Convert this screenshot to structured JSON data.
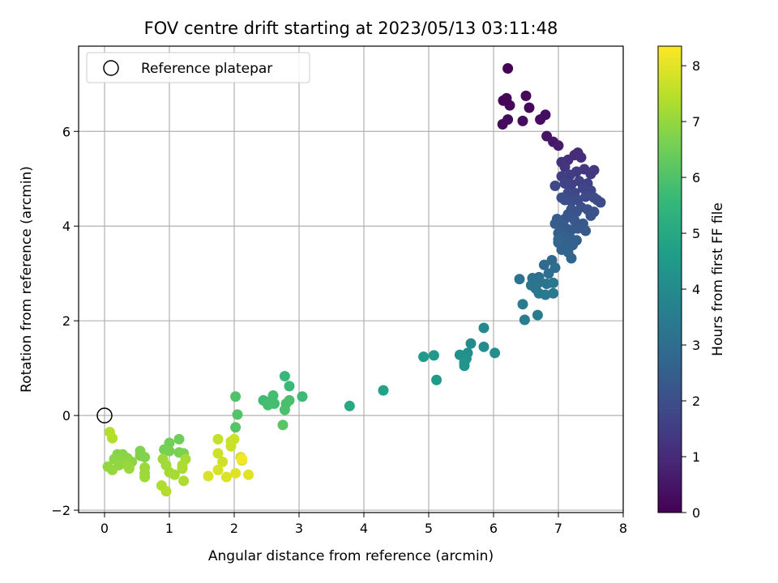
{
  "chart_data": {
    "type": "scatter",
    "title": "FOV centre drift starting at 2023/05/13 03:11:48",
    "xlabel": "Angular distance from reference (arcmin)",
    "ylabel": "Rotation from reference (arcmin)",
    "xlim": [
      -0.4,
      8.0
    ],
    "ylim": [
      -2.05,
      7.8
    ],
    "xticks": [
      0,
      1,
      2,
      3,
      4,
      5,
      6,
      7,
      8
    ],
    "yticks": [
      -2,
      0,
      2,
      4,
      6
    ],
    "grid": true,
    "legend": {
      "placement": "top-left",
      "entries": [
        "Reference platepar"
      ]
    },
    "reference_point": {
      "x": 0.0,
      "y": 0.0,
      "label": "Reference platepar"
    },
    "colorbar": {
      "label": "Hours from first FF file",
      "range": [
        0,
        8.35
      ],
      "ticks": [
        0,
        1,
        2,
        3,
        4,
        5,
        6,
        7,
        8
      ],
      "colormap": "viridis"
    },
    "points": [
      {
        "x": 6.22,
        "y": 7.33,
        "c": 0.05
      },
      {
        "x": 6.15,
        "y": 6.65,
        "c": 0.1
      },
      {
        "x": 6.2,
        "y": 6.7,
        "c": 0.12
      },
      {
        "x": 6.25,
        "y": 6.55,
        "c": 0.15
      },
      {
        "x": 6.5,
        "y": 6.75,
        "c": 0.18
      },
      {
        "x": 6.55,
        "y": 6.5,
        "c": 0.2
      },
      {
        "x": 6.14,
        "y": 6.15,
        "c": 0.22
      },
      {
        "x": 6.22,
        "y": 6.25,
        "c": 0.25
      },
      {
        "x": 6.45,
        "y": 6.22,
        "c": 0.28
      },
      {
        "x": 6.72,
        "y": 6.25,
        "c": 0.3
      },
      {
        "x": 6.8,
        "y": 6.35,
        "c": 0.33
      },
      {
        "x": 6.82,
        "y": 5.9,
        "c": 0.45
      },
      {
        "x": 6.92,
        "y": 5.78,
        "c": 0.55
      },
      {
        "x": 7.0,
        "y": 5.7,
        "c": 0.65
      },
      {
        "x": 7.25,
        "y": 5.5,
        "c": 1.0
      },
      {
        "x": 7.3,
        "y": 5.55,
        "c": 1.05
      },
      {
        "x": 7.35,
        "y": 5.45,
        "c": 1.1
      },
      {
        "x": 7.15,
        "y": 5.4,
        "c": 1.15
      },
      {
        "x": 7.05,
        "y": 5.35,
        "c": 1.2
      },
      {
        "x": 7.1,
        "y": 5.25,
        "c": 1.25
      },
      {
        "x": 7.4,
        "y": 5.2,
        "c": 1.3
      },
      {
        "x": 7.55,
        "y": 5.18,
        "c": 1.35
      },
      {
        "x": 7.5,
        "y": 5.1,
        "c": 1.4
      },
      {
        "x": 7.28,
        "y": 5.15,
        "c": 1.45
      },
      {
        "x": 7.18,
        "y": 5.08,
        "c": 1.5
      },
      {
        "x": 7.05,
        "y": 5.05,
        "c": 1.55
      },
      {
        "x": 7.32,
        "y": 4.95,
        "c": 1.6
      },
      {
        "x": 7.45,
        "y": 4.9,
        "c": 1.62
      },
      {
        "x": 7.2,
        "y": 4.88,
        "c": 1.65
      },
      {
        "x": 7.1,
        "y": 4.9,
        "c": 1.7
      },
      {
        "x": 7.38,
        "y": 4.8,
        "c": 1.72
      },
      {
        "x": 7.5,
        "y": 4.75,
        "c": 1.75
      },
      {
        "x": 7.25,
        "y": 4.7,
        "c": 1.78
      },
      {
        "x": 7.15,
        "y": 4.7,
        "c": 1.8
      },
      {
        "x": 6.95,
        "y": 4.85,
        "c": 1.82
      },
      {
        "x": 7.42,
        "y": 4.62,
        "c": 1.85
      },
      {
        "x": 7.55,
        "y": 4.6,
        "c": 1.88
      },
      {
        "x": 7.6,
        "y": 4.55,
        "c": 1.9
      },
      {
        "x": 7.65,
        "y": 4.5,
        "c": 1.92
      },
      {
        "x": 7.3,
        "y": 4.55,
        "c": 1.95
      },
      {
        "x": 7.2,
        "y": 4.52,
        "c": 1.97
      },
      {
        "x": 7.1,
        "y": 4.55,
        "c": 2.0
      },
      {
        "x": 7.05,
        "y": 4.6,
        "c": 2.02
      },
      {
        "x": 7.35,
        "y": 4.4,
        "c": 2.05
      },
      {
        "x": 7.45,
        "y": 4.35,
        "c": 2.08
      },
      {
        "x": 7.55,
        "y": 4.3,
        "c": 2.1
      },
      {
        "x": 7.5,
        "y": 4.22,
        "c": 2.12
      },
      {
        "x": 7.28,
        "y": 4.3,
        "c": 2.15
      },
      {
        "x": 7.2,
        "y": 4.35,
        "c": 2.18
      },
      {
        "x": 7.15,
        "y": 4.25,
        "c": 2.2
      },
      {
        "x": 7.1,
        "y": 4.15,
        "c": 2.22
      },
      {
        "x": 7.25,
        "y": 4.12,
        "c": 2.25
      },
      {
        "x": 7.38,
        "y": 4.05,
        "c": 2.28
      },
      {
        "x": 7.3,
        "y": 3.95,
        "c": 2.3
      },
      {
        "x": 7.42,
        "y": 3.9,
        "c": 2.32
      },
      {
        "x": 7.2,
        "y": 3.92,
        "c": 2.35
      },
      {
        "x": 7.12,
        "y": 3.95,
        "c": 2.38
      },
      {
        "x": 7.05,
        "y": 4.05,
        "c": 2.4
      },
      {
        "x": 6.98,
        "y": 4.15,
        "c": 2.42
      },
      {
        "x": 6.95,
        "y": 4.05,
        "c": 2.45
      },
      {
        "x": 7.0,
        "y": 3.85,
        "c": 2.48
      },
      {
        "x": 7.08,
        "y": 3.8,
        "c": 2.5
      },
      {
        "x": 7.18,
        "y": 3.75,
        "c": 2.52
      },
      {
        "x": 7.28,
        "y": 3.7,
        "c": 2.55
      },
      {
        "x": 7.22,
        "y": 3.6,
        "c": 2.58
      },
      {
        "x": 7.1,
        "y": 3.6,
        "c": 2.6
      },
      {
        "x": 7.0,
        "y": 3.65,
        "c": 2.62
      },
      {
        "x": 7.05,
        "y": 3.5,
        "c": 2.65
      },
      {
        "x": 7.15,
        "y": 3.45,
        "c": 2.68
      },
      {
        "x": 7.2,
        "y": 3.32,
        "c": 2.7
      },
      {
        "x": 7.0,
        "y": 3.72,
        "c": 2.72
      },
      {
        "x": 6.9,
        "y": 3.28,
        "c": 2.8
      },
      {
        "x": 6.78,
        "y": 3.18,
        "c": 2.9
      },
      {
        "x": 6.95,
        "y": 3.12,
        "c": 2.95
      },
      {
        "x": 6.85,
        "y": 3.0,
        "c": 3.0
      },
      {
        "x": 6.7,
        "y": 2.92,
        "c": 3.05
      },
      {
        "x": 6.6,
        "y": 2.9,
        "c": 3.1
      },
      {
        "x": 6.4,
        "y": 2.88,
        "c": 3.15
      },
      {
        "x": 6.72,
        "y": 2.82,
        "c": 3.2
      },
      {
        "x": 6.82,
        "y": 2.78,
        "c": 3.22
      },
      {
        "x": 6.58,
        "y": 2.75,
        "c": 3.25
      },
      {
        "x": 6.65,
        "y": 2.68,
        "c": 3.3
      },
      {
        "x": 6.92,
        "y": 2.8,
        "c": 3.32
      },
      {
        "x": 6.7,
        "y": 2.58,
        "c": 3.35
      },
      {
        "x": 6.8,
        "y": 2.55,
        "c": 3.38
      },
      {
        "x": 6.92,
        "y": 2.58,
        "c": 3.4
      },
      {
        "x": 6.45,
        "y": 2.35,
        "c": 3.45
      },
      {
        "x": 6.68,
        "y": 2.12,
        "c": 3.5
      },
      {
        "x": 6.48,
        "y": 2.02,
        "c": 3.55
      },
      {
        "x": 5.85,
        "y": 1.85,
        "c": 3.9
      },
      {
        "x": 5.65,
        "y": 1.52,
        "c": 4.0
      },
      {
        "x": 5.85,
        "y": 1.45,
        "c": 4.05
      },
      {
        "x": 6.02,
        "y": 1.32,
        "c": 4.1
      },
      {
        "x": 5.6,
        "y": 1.32,
        "c": 4.15
      },
      {
        "x": 5.48,
        "y": 1.28,
        "c": 4.2
      },
      {
        "x": 5.58,
        "y": 1.2,
        "c": 4.25
      },
      {
        "x": 5.55,
        "y": 1.12,
        "c": 4.3
      },
      {
        "x": 5.55,
        "y": 1.05,
        "c": 4.35
      },
      {
        "x": 5.08,
        "y": 1.27,
        "c": 4.45
      },
      {
        "x": 4.92,
        "y": 1.24,
        "c": 4.5
      },
      {
        "x": 5.12,
        "y": 0.75,
        "c": 4.55
      },
      {
        "x": 4.3,
        "y": 0.53,
        "c": 4.8
      },
      {
        "x": 3.78,
        "y": 0.2,
        "c": 5.0
      },
      {
        "x": 2.78,
        "y": 0.83,
        "c": 5.6
      },
      {
        "x": 2.85,
        "y": 0.62,
        "c": 5.65
      },
      {
        "x": 3.05,
        "y": 0.4,
        "c": 5.7
      },
      {
        "x": 2.45,
        "y": 0.32,
        "c": 5.75
      },
      {
        "x": 2.55,
        "y": 0.3,
        "c": 5.78
      },
      {
        "x": 2.6,
        "y": 0.42,
        "c": 5.8
      },
      {
        "x": 2.52,
        "y": 0.22,
        "c": 5.82
      },
      {
        "x": 2.62,
        "y": 0.25,
        "c": 5.85
      },
      {
        "x": 2.8,
        "y": 0.25,
        "c": 5.88
      },
      {
        "x": 2.85,
        "y": 0.32,
        "c": 5.9
      },
      {
        "x": 2.78,
        "y": 0.12,
        "c": 5.92
      },
      {
        "x": 2.02,
        "y": 0.4,
        "c": 6.0
      },
      {
        "x": 2.05,
        "y": 0.02,
        "c": 6.05
      },
      {
        "x": 2.02,
        "y": -0.25,
        "c": 6.1
      },
      {
        "x": 2.75,
        "y": -0.2,
        "c": 6.15
      },
      {
        "x": 1.15,
        "y": -0.5,
        "c": 6.5
      },
      {
        "x": 1.0,
        "y": -0.58,
        "c": 6.55
      },
      {
        "x": 0.92,
        "y": -0.72,
        "c": 6.6
      },
      {
        "x": 1.0,
        "y": -0.75,
        "c": 6.62
      },
      {
        "x": 1.15,
        "y": -0.78,
        "c": 6.65
      },
      {
        "x": 1.22,
        "y": -0.8,
        "c": 6.68
      },
      {
        "x": 0.55,
        "y": -0.75,
        "c": 6.7
      },
      {
        "x": 0.55,
        "y": -0.85,
        "c": 6.72
      },
      {
        "x": 0.62,
        "y": -0.88,
        "c": 6.75
      },
      {
        "x": 0.2,
        "y": -0.82,
        "c": 6.8
      },
      {
        "x": 0.28,
        "y": -0.82,
        "c": 6.82
      },
      {
        "x": 0.35,
        "y": -0.9,
        "c": 6.85
      },
      {
        "x": 0.15,
        "y": -0.92,
        "c": 6.88
      },
      {
        "x": 0.3,
        "y": -0.95,
        "c": 6.9
      },
      {
        "x": 0.42,
        "y": -0.98,
        "c": 6.92
      },
      {
        "x": 0.22,
        "y": -1.05,
        "c": 6.95
      },
      {
        "x": 0.05,
        "y": -1.08,
        "c": 6.98
      },
      {
        "x": 0.12,
        "y": -1.15,
        "c": 7.0
      },
      {
        "x": 0.35,
        "y": -1.05,
        "c": 7.02
      },
      {
        "x": 0.38,
        "y": -1.12,
        "c": 7.05
      },
      {
        "x": 0.62,
        "y": -1.1,
        "c": 7.08
      },
      {
        "x": 0.62,
        "y": -1.22,
        "c": 7.1
      },
      {
        "x": 0.62,
        "y": -1.3,
        "c": 7.12
      },
      {
        "x": 0.9,
        "y": -0.92,
        "c": 7.15
      },
      {
        "x": 0.95,
        "y": -1.05,
        "c": 7.18
      },
      {
        "x": 1.0,
        "y": -1.2,
        "c": 7.2
      },
      {
        "x": 1.08,
        "y": -1.25,
        "c": 7.22
      },
      {
        "x": 1.25,
        "y": -0.92,
        "c": 7.25
      },
      {
        "x": 1.2,
        "y": -1.05,
        "c": 7.28
      },
      {
        "x": 1.2,
        "y": -1.12,
        "c": 7.3
      },
      {
        "x": 1.22,
        "y": -1.38,
        "c": 7.32
      },
      {
        "x": 0.88,
        "y": -1.48,
        "c": 7.35
      },
      {
        "x": 0.95,
        "y": -1.6,
        "c": 7.38
      },
      {
        "x": 0.08,
        "y": -0.35,
        "c": 7.4
      },
      {
        "x": 0.12,
        "y": -0.48,
        "c": 7.42
      },
      {
        "x": 1.75,
        "y": -0.5,
        "c": 7.6
      },
      {
        "x": 1.95,
        "y": -0.55,
        "c": 7.65
      },
      {
        "x": 2.0,
        "y": -0.5,
        "c": 7.68
      },
      {
        "x": 1.95,
        "y": -0.65,
        "c": 7.7
      },
      {
        "x": 1.75,
        "y": -0.8,
        "c": 7.72
      },
      {
        "x": 1.82,
        "y": -0.98,
        "c": 7.75
      },
      {
        "x": 2.1,
        "y": -0.88,
        "c": 7.78
      },
      {
        "x": 2.12,
        "y": -0.95,
        "c": 7.8
      },
      {
        "x": 1.75,
        "y": -1.15,
        "c": 7.85
      },
      {
        "x": 1.6,
        "y": -1.28,
        "c": 7.88
      },
      {
        "x": 1.88,
        "y": -1.3,
        "c": 7.9
      },
      {
        "x": 2.02,
        "y": -1.22,
        "c": 7.92
      },
      {
        "x": 2.22,
        "y": -1.25,
        "c": 7.95
      },
      {
        "x": 2.12,
        "y": -0.92,
        "c": 8.25
      }
    ]
  }
}
